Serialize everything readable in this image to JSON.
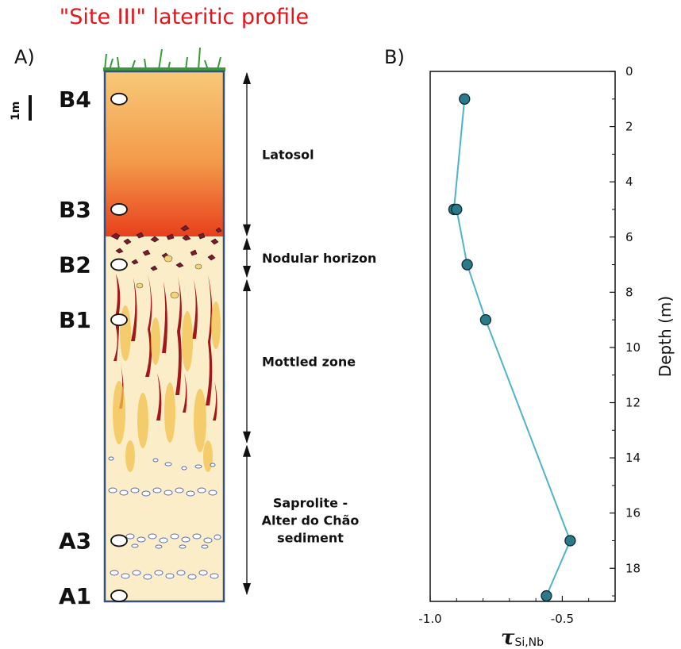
{
  "title": "\"Site III\" lateritic profile",
  "panel_a_label": "A)",
  "panel_b_label": "B)",
  "scale_label": "1m",
  "samples": [
    {
      "name": "B4",
      "depth": 1
    },
    {
      "name": "B3",
      "depth": 5
    },
    {
      "name": "B2",
      "depth": 7
    },
    {
      "name": "B1",
      "depth": 9
    },
    {
      "name": "A3",
      "depth": 17
    },
    {
      "name": "A1",
      "depth": 19
    }
  ],
  "zones": [
    {
      "label": "Latosol",
      "top": 0,
      "bottom": 6
    },
    {
      "label": "Nodular horizon",
      "top": 6,
      "bottom": 7.5
    },
    {
      "label": "Mottled zone",
      "top": 7.5,
      "bottom": 13.5
    },
    {
      "label": "Saprolite - Alter do Chão sediment",
      "lines": [
        "Saprolite -",
        "Alter do Chão",
        "sediment"
      ],
      "top": 13.5,
      "bottom": 19
    }
  ],
  "colors": {
    "title": "#e8141a",
    "line": "#4fb3c9",
    "marker": "#2a7a8c",
    "column_border": "#36507a",
    "latosol_top": "#f7c978",
    "latosol_bottom": "#e8401c",
    "mottle": "#a3171b",
    "pale": "#fbedc8"
  },
  "chart_data": {
    "type": "line",
    "x": [
      -0.87,
      -0.91,
      -0.9,
      -0.86,
      -0.79,
      -0.47,
      -0.56
    ],
    "y": [
      1,
      5,
      5,
      7,
      9,
      17,
      19
    ],
    "xlabel_main": "τ",
    "xlabel_sub": "Si,Nb",
    "ylabel": "Depth (m)",
    "xlim": [
      -1.0,
      -0.3
    ],
    "ylim": [
      0,
      19.2
    ],
    "y_inverted": true,
    "xticks": [
      -1.0,
      -0.5
    ],
    "xtick_labels": [
      "-1.0",
      "-0.5"
    ],
    "yticks": [
      0,
      2,
      4,
      6,
      8,
      10,
      12,
      14,
      16,
      18
    ],
    "ytick_labels": [
      "0",
      "2",
      "4",
      "6",
      "8",
      "10",
      "12",
      "14",
      "16",
      "18"
    ],
    "yaxis_side": "right",
    "grid": false
  }
}
